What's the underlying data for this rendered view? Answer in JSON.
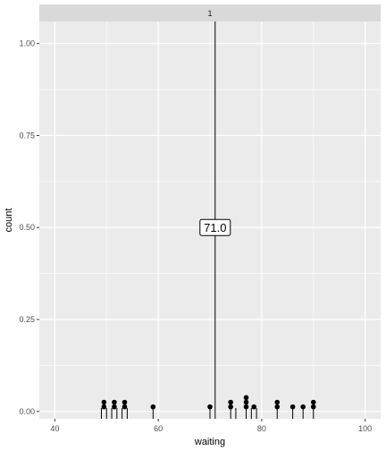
{
  "chart_data": {
    "type": "scatter",
    "facet_strip": "1",
    "xlabel": "waiting",
    "ylabel": "count",
    "xlim": [
      37,
      103
    ],
    "ylim": [
      -0.02,
      1.06
    ],
    "x_ticks": [
      40,
      60,
      80,
      100
    ],
    "x_tick_labels": [
      "40",
      "60",
      "80",
      "100"
    ],
    "y_ticks": [
      0.0,
      0.25,
      0.5,
      0.75,
      1.0
    ],
    "y_tick_labels": [
      "0.00",
      "0.25",
      "0.50",
      "0.75",
      "1.00"
    ],
    "grid": true,
    "panel_background": "#ebebeb",
    "strip_background": "#d9d9d9",
    "grid_color": "#ffffff",
    "point_color": "#000000",
    "dot_points": [
      {
        "x": 49.5,
        "y": 0.0125
      },
      {
        "x": 49.5,
        "y": 0.025
      },
      {
        "x": 51.5,
        "y": 0.0125
      },
      {
        "x": 51.5,
        "y": 0.025
      },
      {
        "x": 53.5,
        "y": 0.0125
      },
      {
        "x": 53.5,
        "y": 0.025
      },
      {
        "x": 59,
        "y": 0.0125
      },
      {
        "x": 70,
        "y": 0.0125
      },
      {
        "x": 74,
        "y": 0.0125
      },
      {
        "x": 74,
        "y": 0.025
      },
      {
        "x": 77,
        "y": 0.0125
      },
      {
        "x": 77,
        "y": 0.025
      },
      {
        "x": 77,
        "y": 0.0375
      },
      {
        "x": 78.5,
        "y": 0.0125
      },
      {
        "x": 83,
        "y": 0.0125
      },
      {
        "x": 83,
        "y": 0.025
      },
      {
        "x": 86,
        "y": 0.0125
      },
      {
        "x": 88,
        "y": 0.0125
      },
      {
        "x": 90,
        "y": 0.0125
      },
      {
        "x": 90,
        "y": 0.025
      }
    ],
    "rug_x": [
      49,
      50,
      51,
      52,
      53,
      54,
      59,
      70,
      74,
      75,
      77,
      78,
      79,
      83,
      86,
      88,
      90
    ],
    "vline_x": 71,
    "annotation": {
      "label": "71.0",
      "x": 71,
      "y": 0.5
    }
  }
}
